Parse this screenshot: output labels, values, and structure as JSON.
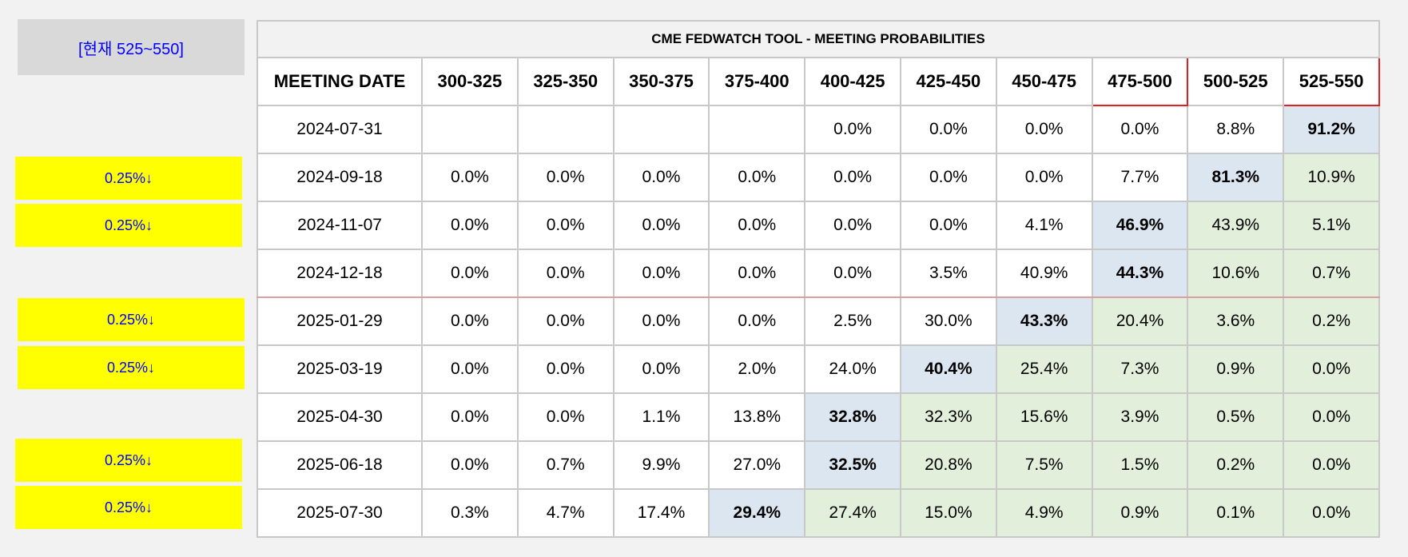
{
  "side": {
    "current": "[현재 525~550]",
    "cuts": [
      "0.25%↓",
      "0.25%↓",
      "0.25%↓",
      "0.25%↓",
      "0.25%↓",
      "0.25%↓"
    ]
  },
  "table": {
    "title": "CME FEDWATCH TOOL - MEETING PROBABILITIES",
    "columns": [
      "MEETING DATE",
      "300-325",
      "325-350",
      "350-375",
      "375-400",
      "400-425",
      "425-450",
      "450-475",
      "475-500",
      "500-525",
      "525-550"
    ],
    "rows": [
      {
        "date": "2024-07-31",
        "cells": [
          "",
          "",
          "",
          "",
          "0.0%",
          "0.0%",
          "0.0%",
          "0.0%",
          "8.8%",
          "91.2%"
        ]
      },
      {
        "date": "2024-09-18",
        "cells": [
          "0.0%",
          "0.0%",
          "0.0%",
          "0.0%",
          "0.0%",
          "0.0%",
          "0.0%",
          "7.7%",
          "81.3%",
          "10.9%"
        ]
      },
      {
        "date": "2024-11-07",
        "cells": [
          "0.0%",
          "0.0%",
          "0.0%",
          "0.0%",
          "0.0%",
          "0.0%",
          "4.1%",
          "46.9%",
          "43.9%",
          "5.1%"
        ]
      },
      {
        "date": "2024-12-18",
        "cells": [
          "0.0%",
          "0.0%",
          "0.0%",
          "0.0%",
          "0.0%",
          "3.5%",
          "40.9%",
          "44.3%",
          "10.6%",
          "0.7%"
        ]
      },
      {
        "date": "2025-01-29",
        "cells": [
          "0.0%",
          "0.0%",
          "0.0%",
          "0.0%",
          "2.5%",
          "30.0%",
          "43.3%",
          "20.4%",
          "3.6%",
          "0.2%"
        ]
      },
      {
        "date": "2025-03-19",
        "cells": [
          "0.0%",
          "0.0%",
          "0.0%",
          "2.0%",
          "24.0%",
          "40.4%",
          "25.4%",
          "7.3%",
          "0.9%",
          "0.0%"
        ]
      },
      {
        "date": "2025-04-30",
        "cells": [
          "0.0%",
          "0.0%",
          "1.1%",
          "13.8%",
          "32.8%",
          "32.3%",
          "15.6%",
          "3.9%",
          "0.5%",
          "0.0%"
        ]
      },
      {
        "date": "2025-06-18",
        "cells": [
          "0.0%",
          "0.7%",
          "9.9%",
          "27.0%",
          "32.5%",
          "20.8%",
          "7.5%",
          "1.5%",
          "0.2%",
          "0.0%"
        ]
      },
      {
        "date": "2025-07-30",
        "cells": [
          "0.3%",
          "4.7%",
          "17.4%",
          "29.4%",
          "27.4%",
          "15.0%",
          "4.9%",
          "0.9%",
          "0.1%",
          "0.0%"
        ]
      }
    ]
  },
  "colors": {
    "highlight": "#dce6f1",
    "shaded": "#e2efda",
    "cut_bg": "#ffff00",
    "cut_text": "#0000ff",
    "box_border": "#e41f1f"
  }
}
